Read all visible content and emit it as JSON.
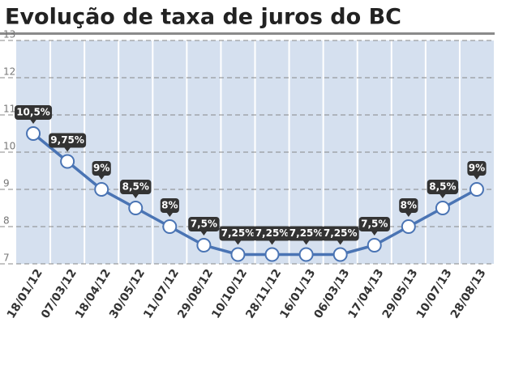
{
  "chart_data": {
    "type": "line",
    "title": "Evolução de taxa de juros do BC",
    "categories": [
      "18/01/12",
      "07/03/12",
      "18/04/12",
      "30/05/12",
      "11/07/12",
      "29/08/12",
      "10/10/12",
      "28/11/12",
      "16/01/13",
      "06/03/13",
      "17/04/13",
      "29/05/13",
      "10/07/13",
      "28/08/13"
    ],
    "values": [
      10.5,
      9.75,
      9,
      8.5,
      8,
      7.5,
      7.25,
      7.25,
      7.25,
      7.25,
      7.5,
      8,
      8.5,
      9
    ],
    "value_labels": [
      "10,5%",
      "9,75%",
      "9%",
      "8,5%",
      "8%",
      "7,5%",
      "7,25%",
      "7,25%",
      "7,25%",
      "7,25%",
      "7,5%",
      "8%",
      "8,5%",
      "9%"
    ],
    "color": "#4a74b4",
    "ylim": [
      7,
      13
    ],
    "yticks": [
      7,
      8,
      9,
      10,
      11,
      12,
      13
    ],
    "grid": true
  }
}
